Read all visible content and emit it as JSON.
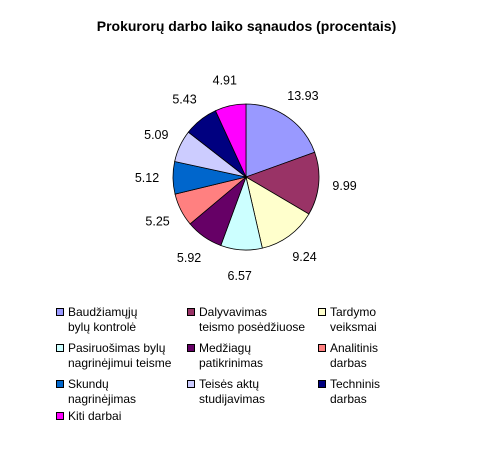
{
  "chart_data": {
    "type": "pie",
    "title": "Prokurorų darbo laiko sąnaudos (procentais)",
    "categories": [
      "Baudžiamųjų\nbylų kontrolė",
      "Dalyvavimas\nteismo posėdžiuose",
      "Tardymo\nveiksmai",
      "Pasiruošimas bylų\nnagrinėjimui teisme",
      "Medžiagų\npatikrinimas",
      "Analitinis\ndarbas",
      "Skundų\nnagrinėjimas",
      "Teisės aktų\nstudijavimas",
      "Techninis\ndarbas",
      "Kiti darbai"
    ],
    "values": [
      13.93,
      9.99,
      9.24,
      6.57,
      5.92,
      5.25,
      5.12,
      5.09,
      5.43,
      4.91
    ],
    "value_labels": [
      "13.93",
      "9.99",
      "9.24",
      "6.57",
      "5.92",
      "5.25",
      "5.12",
      "5.09",
      "5.43",
      "4.91"
    ],
    "colors": [
      "#9999FF",
      "#993366",
      "#FFFFCC",
      "#CCFFFF",
      "#660066",
      "#FF8080",
      "#0066CC",
      "#CCCCFF",
      "#000080",
      "#FF00FF"
    ],
    "legend_position": "bottom",
    "start_angle": "12 o'clock",
    "direction": "clockwise"
  }
}
